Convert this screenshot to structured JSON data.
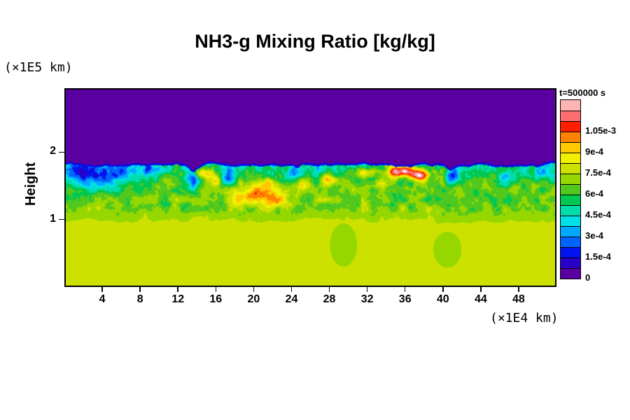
{
  "chart_data": {
    "type": "heatmap",
    "title": "NH3-g Mixing Ratio [kg/kg]",
    "ylabel": "Height",
    "ylabel_unit": "(×1E5 km)",
    "xlabel_unit": "(×1E4 km)",
    "time_label": "t=500000 s",
    "x_range": [
      0,
      52
    ],
    "x_ticks": [
      4,
      8,
      12,
      16,
      20,
      24,
      28,
      32,
      36,
      40,
      44,
      48
    ],
    "y_range": [
      0,
      2.95
    ],
    "y_ticks": [
      2,
      1
    ],
    "grid": false,
    "colorbar": {
      "position": "right",
      "level_step": 7.5e-05,
      "tick_labels": [
        "1.05e-3",
        "9e-4",
        "7.5e-4",
        "6e-4",
        "4.5e-4",
        "3e-4",
        "1.5e-4",
        "0"
      ],
      "tick_level_index": [
        14,
        12,
        10,
        8,
        6,
        4,
        2,
        0
      ],
      "overflow_color": "#ffffff",
      "colors_bottom_to_top": [
        "#5a00a0",
        "#2800c8",
        "#0014f0",
        "#0064ff",
        "#00a8ff",
        "#00e0e6",
        "#00dcaa",
        "#00c850",
        "#50c81e",
        "#96d700",
        "#cde100",
        "#f0f000",
        "#ffc800",
        "#ff8200",
        "#ff1e00",
        "#ff6e6e",
        "#ffb4b4"
      ]
    },
    "field": {
      "upper_value": 2e-06,
      "lower_value": 0.00076,
      "mixed_value": 0.00066,
      "interface_height": 1.84,
      "mixed_bottom": 1.18,
      "interface_dips": [
        {
          "x": 13.6,
          "depth": 0.09,
          "w": 0.4
        },
        {
          "x": 24.6,
          "depth": 0.04,
          "w": 0.3
        },
        {
          "x": 40.8,
          "depth": 0.06,
          "w": 0.35
        }
      ],
      "warm_features": [
        {
          "x": 14.6,
          "h": 1.7,
          "sx": 0.8,
          "sy": 0.055,
          "amp": 0.00042
        },
        {
          "x": 16.2,
          "h": 1.58,
          "sx": 0.5,
          "sy": 0.05,
          "amp": 0.00024
        },
        {
          "x": 18.0,
          "h": 1.3,
          "sx": 0.6,
          "sy": 0.06,
          "amp": 0.0002
        },
        {
          "x": 20.3,
          "h": 1.38,
          "sx": 1.3,
          "sy": 0.1,
          "amp": 0.00038
        },
        {
          "x": 22.6,
          "h": 1.28,
          "sx": 0.9,
          "sy": 0.07,
          "amp": 0.0003
        },
        {
          "x": 21.5,
          "h": 1.55,
          "sx": 0.5,
          "sy": 0.05,
          "amp": 0.0002
        },
        {
          "x": 25.2,
          "h": 1.5,
          "sx": 0.45,
          "sy": 0.05,
          "amp": 0.0002
        },
        {
          "x": 28.2,
          "h": 1.6,
          "sx": 0.7,
          "sy": 0.055,
          "amp": 0.00032
        },
        {
          "x": 31.8,
          "h": 1.7,
          "sx": 0.7,
          "sy": 0.05,
          "amp": 0.00028
        },
        {
          "x": 33.5,
          "h": 1.55,
          "sx": 0.5,
          "sy": 0.05,
          "amp": 0.0002
        },
        {
          "x": 35.6,
          "h": 1.72,
          "sx": 1.2,
          "sy": 0.06,
          "amp": 0.00074
        },
        {
          "x": 37.6,
          "h": 1.66,
          "sx": 0.7,
          "sy": 0.055,
          "amp": 0.00052
        }
      ],
      "cool_features": [
        {
          "x": 1.5,
          "h": 1.75,
          "sx": 1.0,
          "sy": 0.08,
          "amp": 0.00028
        },
        {
          "x": 3.0,
          "h": 1.6,
          "sx": 2.2,
          "sy": 0.14,
          "amp": 0.00032
        },
        {
          "x": 6.5,
          "h": 1.68,
          "sx": 1.3,
          "sy": 0.1,
          "amp": 0.00026
        },
        {
          "x": 9.3,
          "h": 1.74,
          "sx": 0.8,
          "sy": 0.06,
          "amp": 0.00022
        },
        {
          "x": 13.7,
          "h": 1.6,
          "sx": 0.45,
          "sy": 0.13,
          "amp": 0.00038
        },
        {
          "x": 17.2,
          "h": 1.62,
          "sx": 0.5,
          "sy": 0.09,
          "amp": 0.0003
        },
        {
          "x": 24.0,
          "h": 1.7,
          "sx": 0.6,
          "sy": 0.07,
          "amp": 0.00022
        },
        {
          "x": 41.0,
          "h": 1.67,
          "sx": 0.5,
          "sy": 0.1,
          "amp": 0.00032
        },
        {
          "x": 46.6,
          "h": 1.62,
          "sx": 0.5,
          "sy": 0.08,
          "amp": 0.00024
        },
        {
          "x": 50.8,
          "h": 1.7,
          "sx": 0.8,
          "sy": 0.08,
          "amp": 0.00026
        },
        {
          "x": 29.5,
          "h": 0.62,
          "sx": 0.8,
          "sy": 0.18,
          "amp": 5e-05
        },
        {
          "x": 40.5,
          "h": 0.55,
          "sx": 0.9,
          "sy": 0.16,
          "amp": 4e-05
        }
      ]
    }
  }
}
